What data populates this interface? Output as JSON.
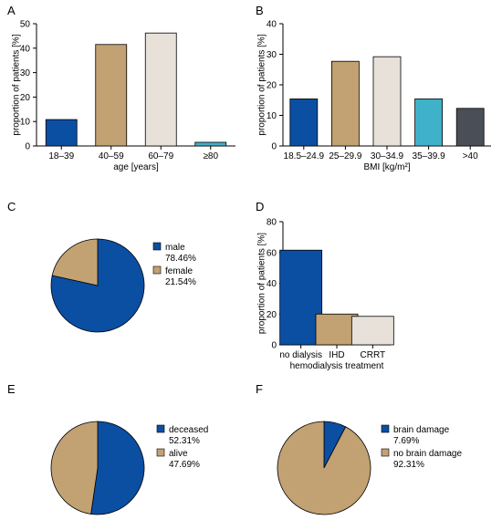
{
  "colors": {
    "blue": "#0b4fa3",
    "tan": "#c2a173",
    "light": "#e7e1d9",
    "cyan": "#3fb1c9",
    "dark": "#4a4f57",
    "axis": "#000000"
  },
  "chart_data": [
    {
      "panel": "A",
      "type": "bar",
      "categories": [
        "18–39",
        "40–59",
        "60–79",
        "≥80"
      ],
      "values": [
        10.8,
        41.5,
        46.2,
        1.5
      ],
      "colors": [
        "blue",
        "tan",
        "light",
        "cyan"
      ],
      "xlabel": "age [years]",
      "ylabel": "proportion of patients [%]",
      "ylim": [
        0,
        50
      ],
      "yticks": [
        0,
        10,
        20,
        30,
        40,
        50
      ]
    },
    {
      "panel": "B",
      "type": "bar",
      "categories": [
        "18.5–24.9",
        "25–29.9",
        "30–34.9",
        "35–39.9",
        ">40"
      ],
      "values": [
        15.4,
        27.7,
        29.2,
        15.4,
        12.3
      ],
      "colors": [
        "blue",
        "tan",
        "light",
        "cyan",
        "dark"
      ],
      "xlabel": "BMI [kg/m²]",
      "ylabel": "proportion of patients [%]",
      "ylim": [
        0,
        40
      ],
      "yticks": [
        0,
        10,
        20,
        30,
        40
      ]
    },
    {
      "panel": "C",
      "type": "pie",
      "slices": [
        {
          "name": "male",
          "value": 78.46,
          "label": "78.46%",
          "color": "blue"
        },
        {
          "name": "female",
          "value": 21.54,
          "label": "21.54%",
          "color": "tan"
        }
      ]
    },
    {
      "panel": "D",
      "type": "bar",
      "categories": [
        "no dialysis",
        "IHD",
        "CRRT"
      ],
      "values": [
        61.5,
        20.0,
        18.5
      ],
      "colors": [
        "blue",
        "tan",
        "light"
      ],
      "xlabel": "hemodialysis treatment",
      "ylabel": "proportion of patients [%]",
      "ylim": [
        0,
        80
      ],
      "yticks": [
        0,
        20,
        40,
        60,
        80
      ]
    },
    {
      "panel": "E",
      "type": "pie",
      "slices": [
        {
          "name": "deceased",
          "value": 52.31,
          "label": "52.31%",
          "color": "blue"
        },
        {
          "name": "alive",
          "value": 47.69,
          "label": "47.69%",
          "color": "tan"
        }
      ]
    },
    {
      "panel": "F",
      "type": "pie",
      "slices": [
        {
          "name": "brain damage",
          "value": 7.69,
          "label": "7.69%",
          "color": "blue"
        },
        {
          "name": "no brain damage",
          "value": 92.31,
          "label": "92.31%",
          "color": "tan"
        }
      ]
    }
  ]
}
